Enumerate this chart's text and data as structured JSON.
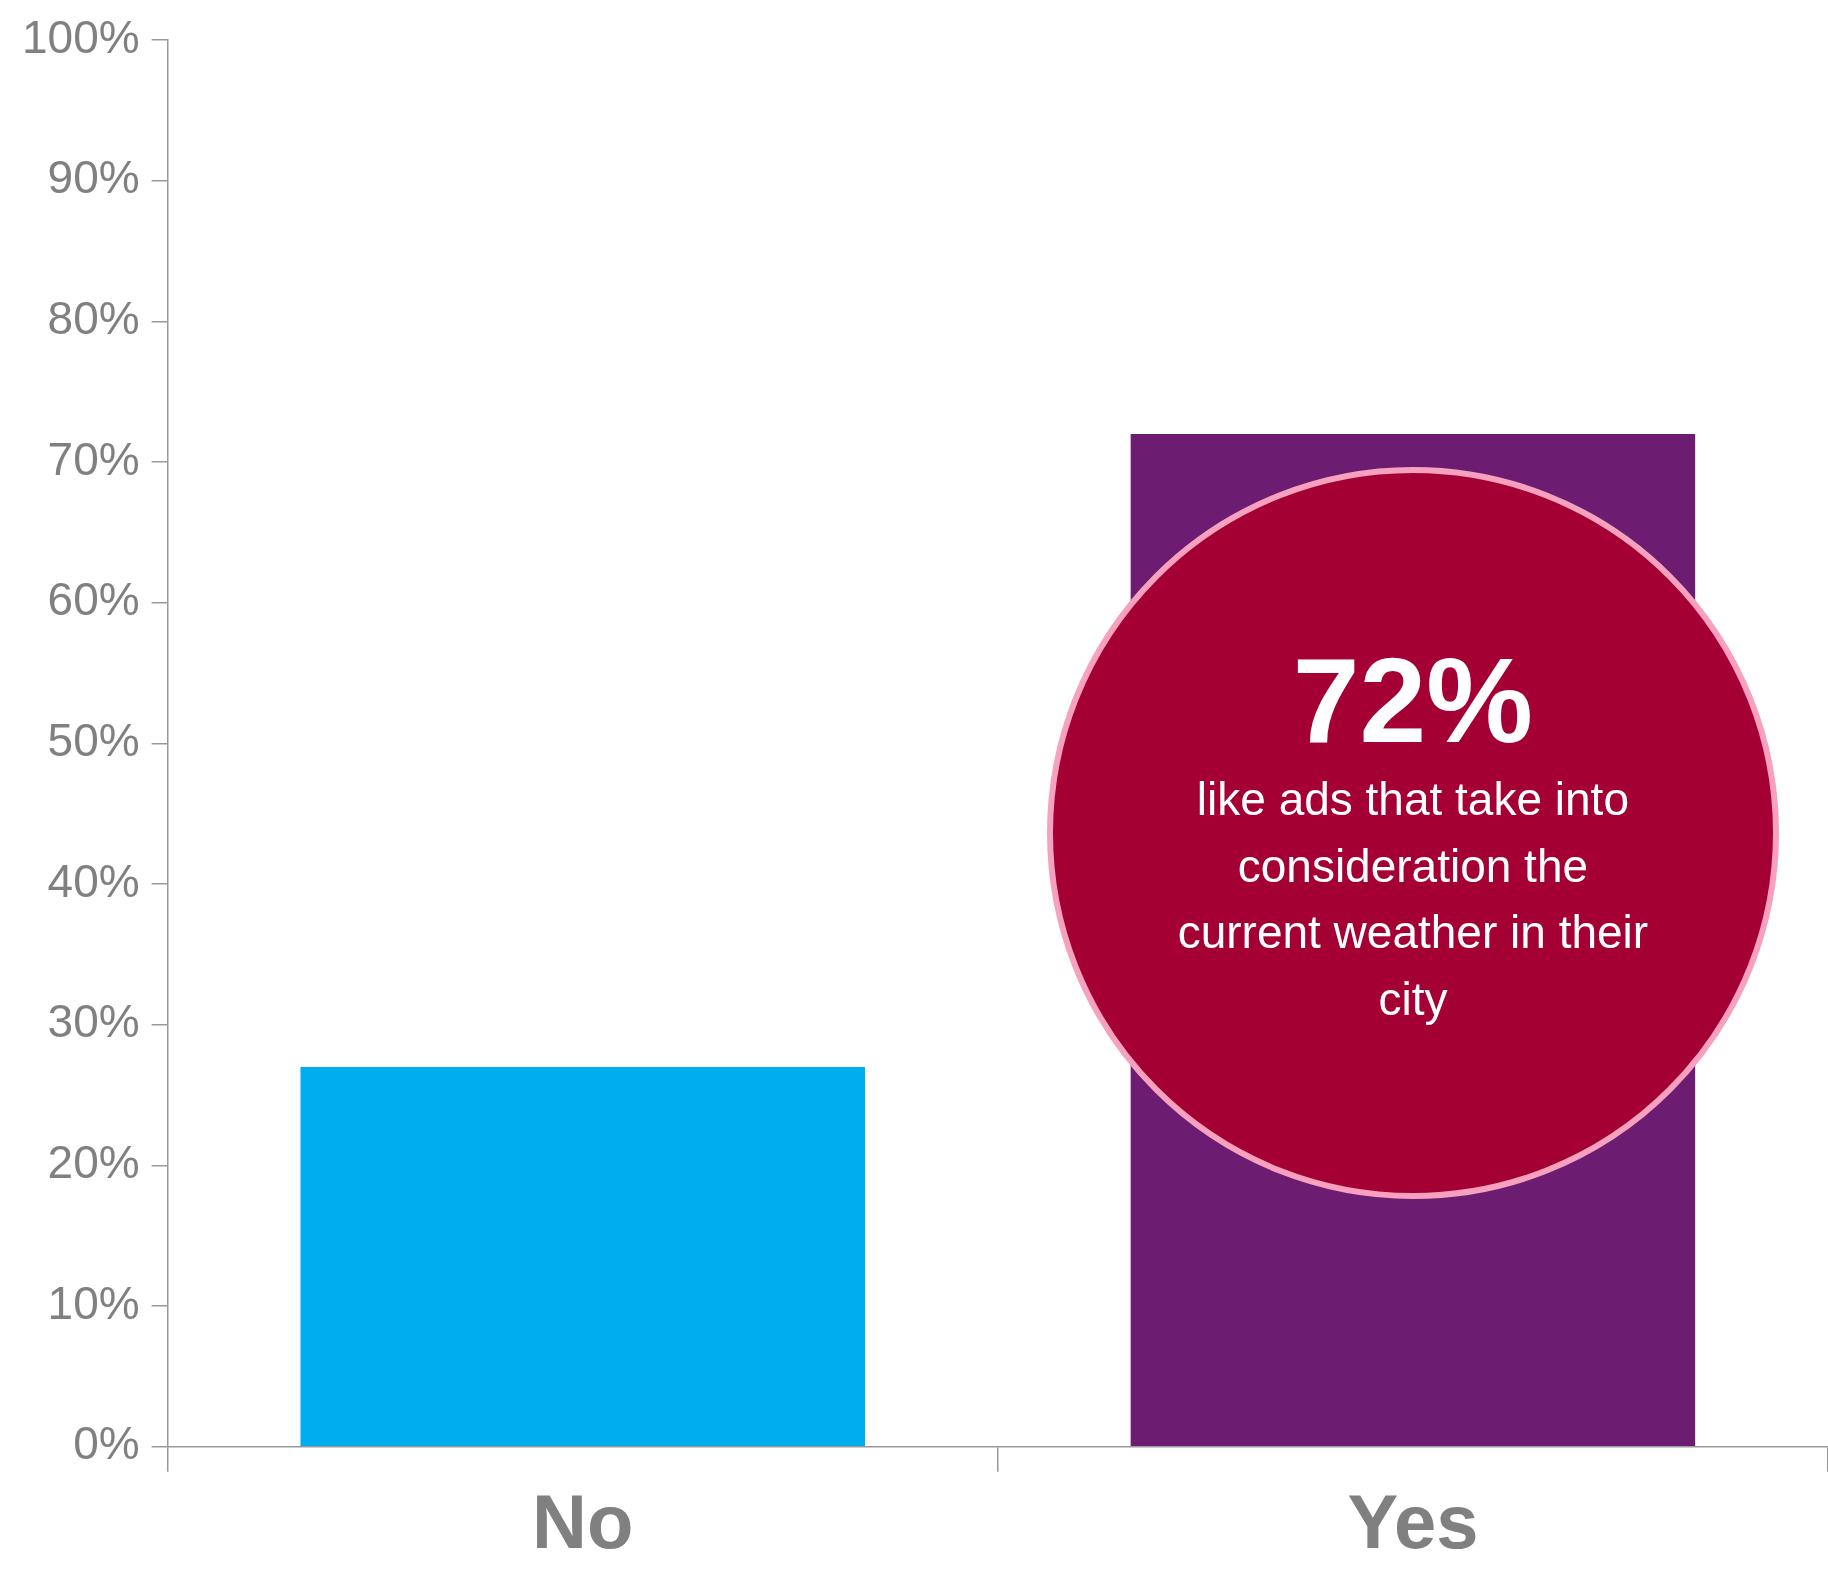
{
  "chart_data": {
    "type": "bar",
    "categories": [
      "No",
      "Yes"
    ],
    "values": [
      27,
      72
    ],
    "colors": [
      "#00aeef",
      "#6c1d72"
    ],
    "value_labels": [
      null,
      "72%"
    ],
    "annotations": [
      "like ads that take into consideration the current weather in their city"
    ],
    "ylim": [
      0,
      100
    ],
    "yticks": [
      {
        "value": 0,
        "label": "0%"
      },
      {
        "value": 10,
        "label": "10%"
      },
      {
        "value": 20,
        "label": "20%"
      },
      {
        "value": 30,
        "label": "30%"
      },
      {
        "value": 40,
        "label": "40%"
      },
      {
        "value": 50,
        "label": "50%"
      },
      {
        "value": 60,
        "label": "60%"
      },
      {
        "value": 70,
        "label": "70%"
      },
      {
        "value": 80,
        "label": "80%"
      },
      {
        "value": 90,
        "label": "90%"
      },
      {
        "value": 100,
        "label": "100%"
      }
    ],
    "grid": false,
    "legend": false
  }
}
